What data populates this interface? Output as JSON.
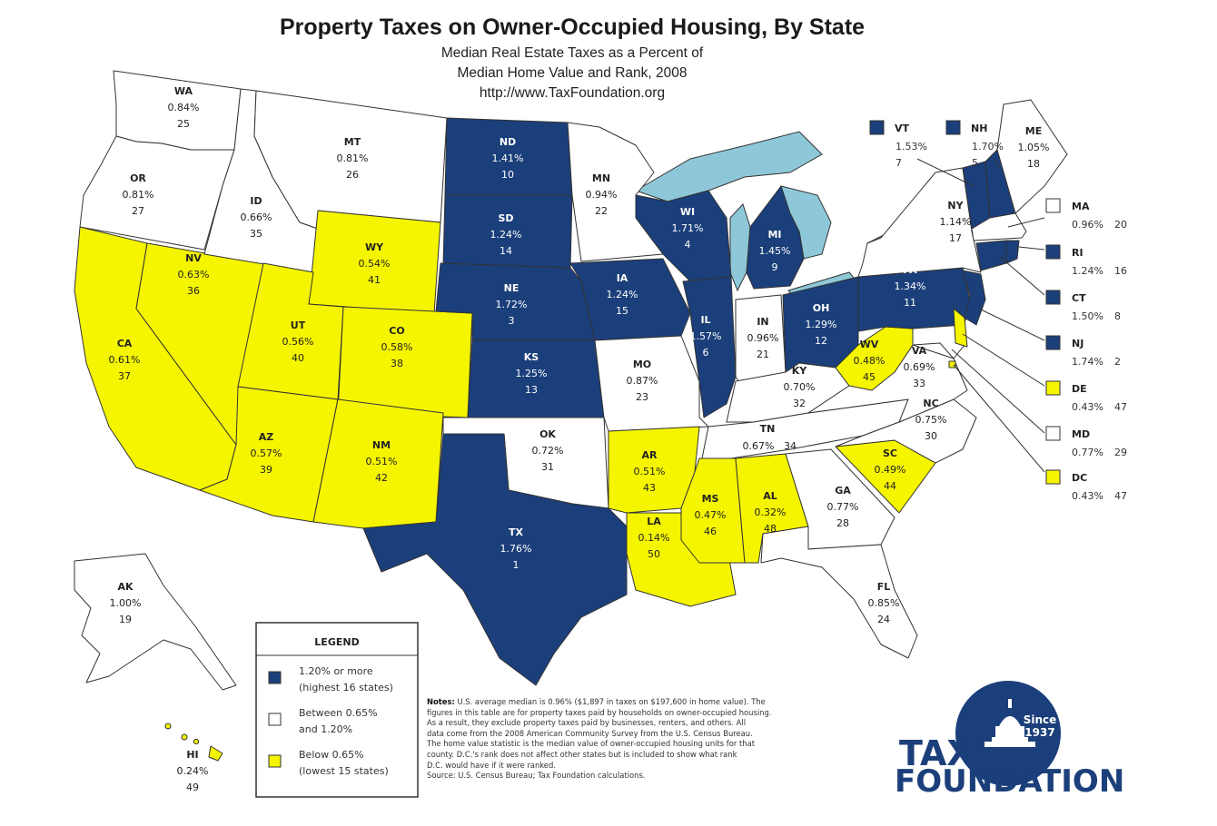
{
  "header": {
    "title": "Property Taxes on Owner-Occupied Housing, By State",
    "subtitle_lines": [
      "Median Real Estate Taxes as a Percent of",
      "Median Home Value and Rank, 2008",
      "http://www.TaxFoundation.org"
    ]
  },
  "colors": {
    "high": "#1b3f7a",
    "mid": "#ffffff",
    "low": "#f5f500",
    "lakes": "#8ec8d8",
    "border": "#333333"
  },
  "states": [
    {
      "abbr": "WA",
      "pct": "0.84%",
      "rank": "25",
      "cat": "mid"
    },
    {
      "abbr": "OR",
      "pct": "0.81%",
      "rank": "27",
      "cat": "mid"
    },
    {
      "abbr": "CA",
      "pct": "0.61%",
      "rank": "37",
      "cat": "low"
    },
    {
      "abbr": "NV",
      "pct": "0.63%",
      "rank": "36",
      "cat": "low"
    },
    {
      "abbr": "ID",
      "pct": "0.66%",
      "rank": "35",
      "cat": "mid"
    },
    {
      "abbr": "MT",
      "pct": "0.81%",
      "rank": "26",
      "cat": "mid"
    },
    {
      "abbr": "WY",
      "pct": "0.54%",
      "rank": "41",
      "cat": "low"
    },
    {
      "abbr": "UT",
      "pct": "0.56%",
      "rank": "40",
      "cat": "low"
    },
    {
      "abbr": "CO",
      "pct": "0.58%",
      "rank": "38",
      "cat": "low"
    },
    {
      "abbr": "AZ",
      "pct": "0.57%",
      "rank": "39",
      "cat": "low"
    },
    {
      "abbr": "NM",
      "pct": "0.51%",
      "rank": "42",
      "cat": "low"
    },
    {
      "abbr": "ND",
      "pct": "1.41%",
      "rank": "10",
      "cat": "high"
    },
    {
      "abbr": "SD",
      "pct": "1.24%",
      "rank": "14",
      "cat": "high"
    },
    {
      "abbr": "NE",
      "pct": "1.72%",
      "rank": "3",
      "cat": "high"
    },
    {
      "abbr": "KS",
      "pct": "1.25%",
      "rank": "13",
      "cat": "high"
    },
    {
      "abbr": "OK",
      "pct": "0.72%",
      "rank": "31",
      "cat": "mid"
    },
    {
      "abbr": "TX",
      "pct": "1.76%",
      "rank": "1",
      "cat": "high"
    },
    {
      "abbr": "MN",
      "pct": "0.94%",
      "rank": "22",
      "cat": "mid"
    },
    {
      "abbr": "IA",
      "pct": "1.24%",
      "rank": "15",
      "cat": "high"
    },
    {
      "abbr": "MO",
      "pct": "0.87%",
      "rank": "23",
      "cat": "mid"
    },
    {
      "abbr": "AR",
      "pct": "0.51%",
      "rank": "43",
      "cat": "low"
    },
    {
      "abbr": "LA",
      "pct": "0.14%",
      "rank": "50",
      "cat": "low"
    },
    {
      "abbr": "WI",
      "pct": "1.71%",
      "rank": "4",
      "cat": "high"
    },
    {
      "abbr": "IL",
      "pct": "1.57%",
      "rank": "6",
      "cat": "high"
    },
    {
      "abbr": "MI",
      "pct": "1.45%",
      "rank": "9",
      "cat": "high"
    },
    {
      "abbr": "IN",
      "pct": "0.96%",
      "rank": "21",
      "cat": "mid"
    },
    {
      "abbr": "OH",
      "pct": "1.29%",
      "rank": "12",
      "cat": "high"
    },
    {
      "abbr": "KY",
      "pct": "0.70%",
      "rank": "32",
      "cat": "mid"
    },
    {
      "abbr": "TN",
      "pct": "0.67%",
      "rank": "34",
      "cat": "mid"
    },
    {
      "abbr": "MS",
      "pct": "0.47%",
      "rank": "46",
      "cat": "low"
    },
    {
      "abbr": "AL",
      "pct": "0.32%",
      "rank": "48",
      "cat": "low"
    },
    {
      "abbr": "GA",
      "pct": "0.77%",
      "rank": "28",
      "cat": "mid"
    },
    {
      "abbr": "FL",
      "pct": "0.85%",
      "rank": "24",
      "cat": "mid"
    },
    {
      "abbr": "SC",
      "pct": "0.49%",
      "rank": "44",
      "cat": "low"
    },
    {
      "abbr": "NC",
      "pct": "0.75%",
      "rank": "30",
      "cat": "mid"
    },
    {
      "abbr": "VA",
      "pct": "0.69%",
      "rank": "33",
      "cat": "mid"
    },
    {
      "abbr": "WV",
      "pct": "0.48%",
      "rank": "45",
      "cat": "low"
    },
    {
      "abbr": "PA",
      "pct": "1.34%",
      "rank": "11",
      "cat": "high"
    },
    {
      "abbr": "NY",
      "pct": "1.14%",
      "rank": "17",
      "cat": "mid"
    },
    {
      "abbr": "VT",
      "pct": "1.53%",
      "rank": "7",
      "cat": "high"
    },
    {
      "abbr": "NH",
      "pct": "1.70%",
      "rank": "5",
      "cat": "high"
    },
    {
      "abbr": "ME",
      "pct": "1.05%",
      "rank": "18",
      "cat": "mid"
    },
    {
      "abbr": "MA",
      "pct": "0.96%",
      "rank": "20",
      "cat": "mid"
    },
    {
      "abbr": "RI",
      "pct": "1.24%",
      "rank": "16",
      "cat": "high"
    },
    {
      "abbr": "CT",
      "pct": "1.50%",
      "rank": "8",
      "cat": "high"
    },
    {
      "abbr": "NJ",
      "pct": "1.74%",
      "rank": "2",
      "cat": "high"
    },
    {
      "abbr": "DE",
      "pct": "0.43%",
      "rank": "47",
      "cat": "low"
    },
    {
      "abbr": "MD",
      "pct": "0.77%",
      "rank": "29",
      "cat": "mid"
    },
    {
      "abbr": "DC",
      "pct": "0.43%",
      "rank": "47",
      "cat": "low"
    },
    {
      "abbr": "AK",
      "pct": "1.00%",
      "rank": "19",
      "cat": "mid"
    },
    {
      "abbr": "HI",
      "pct": "0.24%",
      "rank": "49",
      "cat": "low"
    }
  ],
  "legend": {
    "title": "LEGEND",
    "items": [
      {
        "cat": "high",
        "lines": [
          "1.20% or more",
          "(highest 16 states)"
        ]
      },
      {
        "cat": "mid",
        "lines": [
          "Between 0.65%",
          "and 1.20%"
        ]
      },
      {
        "cat": "low",
        "lines": [
          "Below 0.65%",
          "(lowest 15 states)"
        ]
      }
    ]
  },
  "notes": {
    "label": "Notes:",
    "lines": [
      " U.S. average median is 0.96% ($1,897 in taxes on $197,600 in home value). The",
      "figures in this table are for property taxes paid by households on owner-occupied housing.",
      "As a result, they exclude property taxes paid by businesses, renters, and others. All",
      "data come from the 2008 American Community Survey from the U.S. Census Bureau.",
      "The home value statistic is the median value of owner-occupied housing units for that",
      "county. D.C.'s rank does not affect other states but is included to show what rank",
      "D.C. would have if it were ranked.",
      "Source: U.S. Census Bureau; Tax Foundation calculations."
    ]
  },
  "logo": {
    "line1": "TAX",
    "line2": "FOUNDATION",
    "badge_line1": "Since",
    "badge_line2": "1937"
  }
}
